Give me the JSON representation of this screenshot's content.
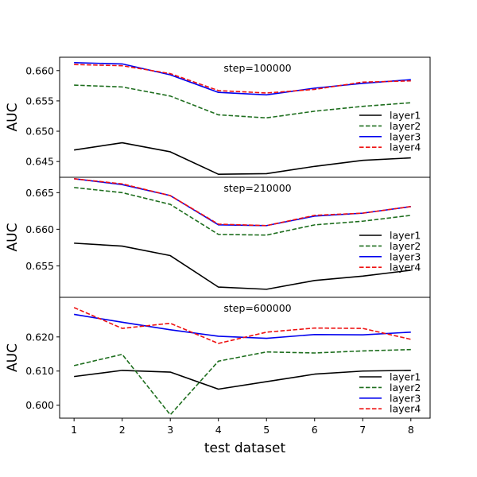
{
  "chart_data": [
    {
      "type": "line",
      "annotation": "step=100000",
      "ylabel": "AUC",
      "xlabel": "",
      "x": [
        1,
        2,
        3,
        4,
        5,
        6,
        7,
        8
      ],
      "xlim": [
        0.7,
        8.4
      ],
      "ylim": [
        0.6424,
        0.6622
      ],
      "yticks": [
        0.645,
        0.65,
        0.655,
        0.66
      ],
      "ytick_labels": [
        "0.645",
        "0.650",
        "0.655",
        "0.660"
      ],
      "legend_position": "right",
      "series": [
        {
          "name": "layer1",
          "color": "#000000",
          "dash": "solid",
          "values": [
            0.6469,
            0.6481,
            0.6466,
            0.6429,
            0.643,
            0.6442,
            0.6452,
            0.6456
          ]
        },
        {
          "name": "layer2",
          "color": "#1e6e1e",
          "dash": "dashed",
          "values": [
            0.6576,
            0.6573,
            0.6558,
            0.6527,
            0.6522,
            0.6533,
            0.6541,
            0.6547
          ]
        },
        {
          "name": "layer3",
          "color": "#0000ee",
          "dash": "solid",
          "values": [
            0.6613,
            0.6611,
            0.6593,
            0.6564,
            0.656,
            0.6571,
            0.6579,
            0.6585
          ]
        },
        {
          "name": "layer4",
          "color": "#ee1111",
          "dash": "dashed",
          "values": [
            0.661,
            0.6608,
            0.6595,
            0.6567,
            0.6563,
            0.6569,
            0.6581,
            0.6583
          ]
        }
      ]
    },
    {
      "type": "line",
      "annotation": "step=210000",
      "ylabel": "AUC",
      "xlabel": "",
      "x": [
        1,
        2,
        3,
        4,
        5,
        6,
        7,
        8
      ],
      "xlim": [
        0.7,
        8.4
      ],
      "ylim": [
        0.6507,
        0.6671
      ],
      "yticks": [
        0.655,
        0.66,
        0.665
      ],
      "ytick_labels": [
        "0.655",
        "0.660",
        "0.665"
      ],
      "legend_position": "right",
      "series": [
        {
          "name": "layer1",
          "color": "#000000",
          "dash": "solid",
          "values": [
            0.6581,
            0.6577,
            0.6564,
            0.6521,
            0.6518,
            0.653,
            0.6536,
            0.6544
          ]
        },
        {
          "name": "layer2",
          "color": "#1e6e1e",
          "dash": "dashed",
          "values": [
            0.6657,
            0.665,
            0.6634,
            0.6593,
            0.6592,
            0.6606,
            0.6611,
            0.6619
          ]
        },
        {
          "name": "layer3",
          "color": "#0000ee",
          "dash": "solid",
          "values": [
            0.6669,
            0.6661,
            0.6646,
            0.6606,
            0.6605,
            0.6618,
            0.6622,
            0.6631
          ]
        },
        {
          "name": "layer4",
          "color": "#ee1111",
          "dash": "dashed",
          "values": [
            0.6669,
            0.6662,
            0.6646,
            0.6607,
            0.6605,
            0.6619,
            0.6622,
            0.6631
          ]
        }
      ]
    },
    {
      "type": "line",
      "annotation": "step=600000",
      "ylabel": "AUC",
      "xlabel": "test dataset",
      "x": [
        1,
        2,
        3,
        4,
        5,
        6,
        7,
        8
      ],
      "xlim": [
        0.7,
        8.4
      ],
      "ylim": [
        0.5962,
        0.6316
      ],
      "yticks": [
        0.6,
        0.61,
        0.62
      ],
      "ytick_labels": [
        "0.600",
        "0.610",
        "0.620"
      ],
      "xticks": [
        1,
        2,
        3,
        4,
        5,
        6,
        7,
        8
      ],
      "xtick_labels": [
        "1",
        "2",
        "3",
        "4",
        "5",
        "6",
        "7",
        "8"
      ],
      "legend_position": "lower right",
      "series": [
        {
          "name": "layer1",
          "color": "#000000",
          "dash": "solid",
          "values": [
            0.6084,
            0.6102,
            0.6097,
            0.6047,
            0.6069,
            0.6091,
            0.61,
            0.6102
          ]
        },
        {
          "name": "layer2",
          "color": "#1e6e1e",
          "dash": "dashed",
          "values": [
            0.6116,
            0.6149,
            0.5972,
            0.6129,
            0.6156,
            0.6153,
            0.6159,
            0.6163
          ]
        },
        {
          "name": "layer3",
          "color": "#0000ee",
          "dash": "solid",
          "values": [
            0.6266,
            0.6243,
            0.6221,
            0.6202,
            0.6196,
            0.6207,
            0.6206,
            0.6214
          ]
        },
        {
          "name": "layer4",
          "color": "#ee1111",
          "dash": "dashed",
          "values": [
            0.6286,
            0.6225,
            0.624,
            0.6181,
            0.6214,
            0.6226,
            0.6225,
            0.6193
          ]
        }
      ]
    }
  ]
}
